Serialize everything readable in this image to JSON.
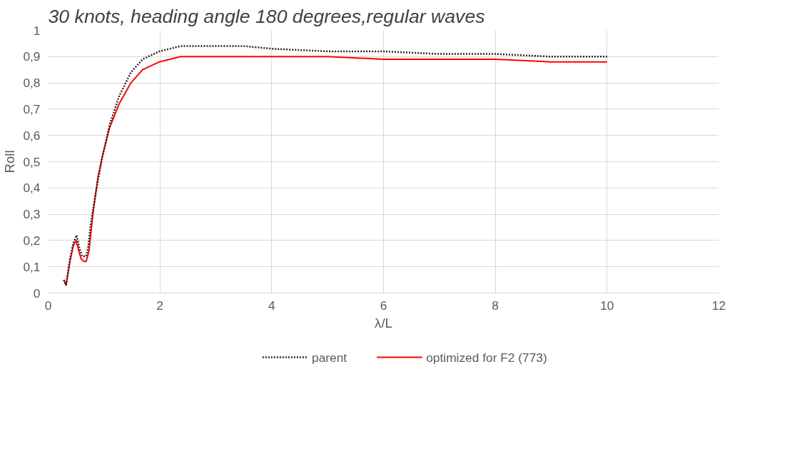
{
  "chart_data": {
    "type": "line",
    "title": "30 knots, heading angle 180 degrees,regular waves",
    "xlabel": "λ/L",
    "ylabel": "Roll",
    "xlim": [
      0,
      12
    ],
    "xticks": [
      0,
      2,
      4,
      6,
      8,
      10,
      12
    ],
    "ylim": [
      0,
      1
    ],
    "yticks": [
      0,
      {
        "value": 0.1,
        "label": "0,1"
      },
      {
        "value": 0.2,
        "label": "0,2"
      },
      {
        "value": 0.3,
        "label": "0,3"
      },
      {
        "value": 0.4,
        "label": "0,4"
      },
      {
        "value": 0.5,
        "label": "0,5"
      },
      {
        "value": 0.6,
        "label": "0,6"
      },
      {
        "value": 0.7,
        "label": "0,7"
      },
      {
        "value": 0.8,
        "label": "0,8"
      },
      {
        "value": 0.9,
        "label": "0,9"
      },
      1
    ],
    "grid": true,
    "legend": "bottom",
    "marker": "none",
    "series": [
      {
        "name": "parent",
        "color": "#262626",
        "line_style": "dotted",
        "x": [
          0.28,
          0.32,
          0.39,
          0.45,
          0.51,
          0.56,
          0.61,
          0.68,
          0.72,
          0.76,
          0.85,
          0.97,
          1.1,
          1.27,
          1.48,
          1.69,
          1.99,
          2.37,
          2.8,
          3.5,
          4,
          5,
          6,
          7,
          8,
          9,
          10
        ],
        "values": [
          0.05,
          0.03,
          0.13,
          0.19,
          0.22,
          0.17,
          0.14,
          0.14,
          0.18,
          0.26,
          0.38,
          0.52,
          0.64,
          0.75,
          0.84,
          0.89,
          0.92,
          0.94,
          0.94,
          0.94,
          0.93,
          0.92,
          0.92,
          0.91,
          0.91,
          0.9,
          0.9
        ]
      },
      {
        "name": "optimized for F2 (773)",
        "color": "#ff0000",
        "line_style": "solid",
        "x": [
          0.28,
          0.32,
          0.39,
          0.45,
          0.5,
          0.55,
          0.59,
          0.64,
          0.68,
          0.73,
          0.8,
          0.89,
          0.97,
          1.1,
          1.27,
          1.48,
          1.69,
          1.99,
          2.37,
          2.97,
          4,
          5,
          6,
          7,
          8,
          9,
          10
        ],
        "values": [
          0.05,
          0.03,
          0.12,
          0.18,
          0.2,
          0.16,
          0.13,
          0.12,
          0.12,
          0.16,
          0.3,
          0.44,
          0.52,
          0.63,
          0.72,
          0.8,
          0.85,
          0.88,
          0.9,
          0.9,
          0.9,
          0.9,
          0.89,
          0.89,
          0.89,
          0.88,
          0.88
        ]
      }
    ]
  }
}
